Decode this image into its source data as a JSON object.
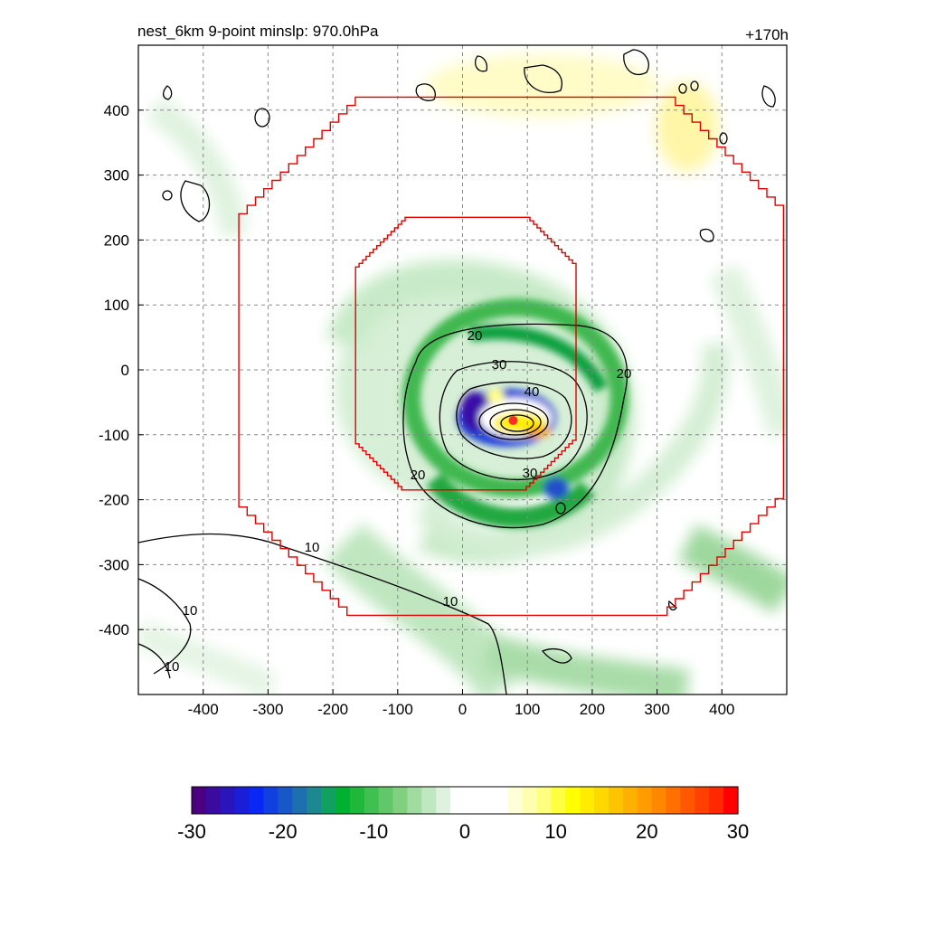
{
  "chart_data": {
    "type": "heatmap",
    "title_left": "nest_6km  9-point minslp: 970.0hPa",
    "title_right": "+170h",
    "xlim": [
      -500,
      500
    ],
    "ylim": [
      -500,
      500
    ],
    "x_ticks": [
      -400,
      -300,
      -200,
      -100,
      0,
      100,
      200,
      300,
      400
    ],
    "y_ticks": [
      400,
      300,
      200,
      100,
      0,
      -100,
      -200,
      -300,
      -400
    ],
    "x_tick_labels": [
      "-400",
      "-300",
      "-200",
      "-100",
      "0",
      "100",
      "200",
      "300",
      "400"
    ],
    "y_tick_labels": [
      "400",
      "300",
      "200",
      "100",
      "0",
      "-100",
      "-200",
      "-300",
      "-400"
    ],
    "grid": true,
    "storm_center": {
      "x": 78,
      "y": -78,
      "color": "#ff2a2a"
    },
    "contour_labels": [
      "20",
      "30",
      "40",
      "20",
      "20",
      "30",
      "10",
      "10",
      "10",
      "10"
    ],
    "contour_levels": [
      10,
      20,
      30,
      40
    ],
    "red_boxes": [
      {
        "name": "inner",
        "x_half_extent": 170,
        "y_top": 235,
        "y_bottom": -185,
        "x_center": 5
      },
      {
        "name": "outer",
        "x_half_extent": 420,
        "y_top": 420,
        "y_bottom": -378,
        "x_center": 75
      }
    ],
    "colorbar": {
      "min": -30,
      "max": 30,
      "tick_values": [
        -30,
        -20,
        -10,
        0,
        10,
        20,
        30
      ],
      "tick_labels": [
        "-30",
        "-20",
        "-10",
        "0",
        "10",
        "20",
        "30"
      ],
      "colors": [
        "#4b0082",
        "#3b0a9e",
        "#2a14bb",
        "#1a1ed8",
        "#0a28f5",
        "#1040e0",
        "#1658c8",
        "#1c70b0",
        "#1c8890",
        "#10a060",
        "#00b030",
        "#20b83a",
        "#40c050",
        "#60c868",
        "#80d080",
        "#a0dca0",
        "#c0e8c0",
        "#dff2df",
        "#ffffff",
        "#ffffff",
        "#ffffff",
        "#ffffff",
        "#ffffd8",
        "#ffffb0",
        "#ffff80",
        "#ffff40",
        "#ffff00",
        "#ffec00",
        "#ffd800",
        "#ffc400",
        "#ffb000",
        "#ff9c00",
        "#ff8800",
        "#ff7000",
        "#ff5800",
        "#ff4000",
        "#ff2800",
        "#ff0000"
      ]
    }
  }
}
